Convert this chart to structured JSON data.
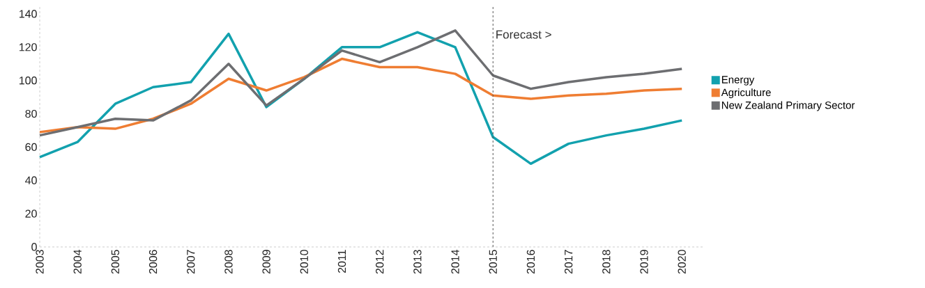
{
  "chart_data": {
    "type": "line",
    "x": [
      2003,
      2004,
      2005,
      2006,
      2007,
      2008,
      2009,
      2010,
      2011,
      2012,
      2013,
      2014,
      2015,
      2016,
      2017,
      2018,
      2019,
      2020
    ],
    "series": [
      {
        "name": "Energy",
        "color": "#12a1ae",
        "values": [
          54,
          63,
          86,
          96,
          99,
          128,
          84,
          101,
          120,
          120,
          129,
          120,
          66,
          50,
          62,
          67,
          71,
          76
        ]
      },
      {
        "name": "Agriculture",
        "color": "#ef7d32",
        "values": [
          69,
          72,
          71,
          77,
          86,
          101,
          94,
          102,
          113,
          108,
          108,
          104,
          91,
          89,
          91,
          92,
          94,
          95
        ]
      },
      {
        "name": "New Zealand Primary Sector",
        "color": "#6d6e71",
        "values": [
          67,
          72,
          77,
          76,
          88,
          110,
          85,
          101,
          118,
          111,
          120,
          130,
          103,
          95,
          99,
          102,
          104,
          107
        ]
      }
    ],
    "xlim": [
      2003,
      2020.55
    ],
    "ylim": [
      0,
      145
    ],
    "xticks": [
      2003,
      2004,
      2005,
      2006,
      2007,
      2008,
      2009,
      2010,
      2011,
      2012,
      2013,
      2014,
      2015,
      2016,
      2017,
      2018,
      2019,
      2020
    ],
    "yticks": [
      0,
      20,
      40,
      60,
      80,
      100,
      120,
      140
    ],
    "ref_lines": [
      {
        "axis": "x",
        "value": 2015,
        "label": "Forecast >",
        "color": "#555555",
        "line_style": "dashed"
      }
    ],
    "legend": "right",
    "grid": false,
    "marker": "none",
    "line_style": "solid"
  }
}
